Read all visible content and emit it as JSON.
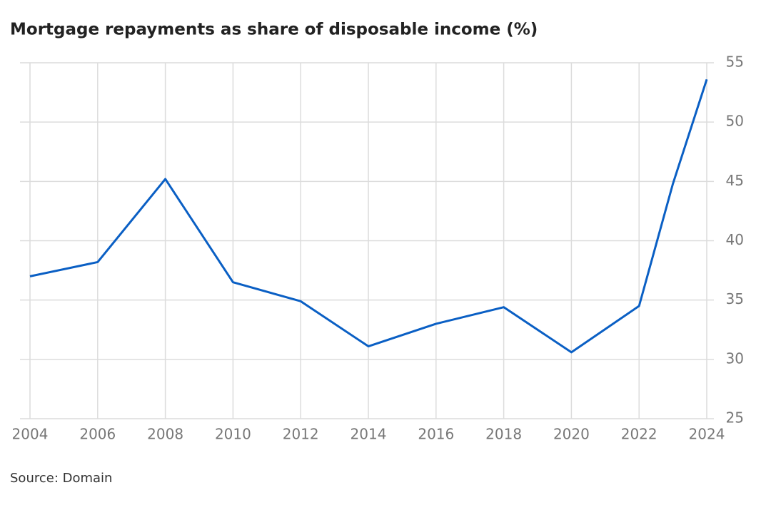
{
  "chart_data": {
    "type": "line",
    "title": "Mortgage repayments as share of disposable income (%)",
    "source": "Source: Domain",
    "x": [
      2004,
      2006,
      2008,
      2010,
      2012,
      2014,
      2016,
      2018,
      2020,
      2022,
      2023,
      2024
    ],
    "series": [
      {
        "color": "#0a5fc4",
        "values": [
          37.0,
          38.2,
          45.2,
          36.5,
          34.9,
          31.1,
          33.0,
          34.4,
          30.6,
          34.5,
          44.8,
          53.6
        ]
      }
    ],
    "xlim": [
      2004,
      2024
    ],
    "xticks": [
      2004,
      2006,
      2008,
      2010,
      2012,
      2014,
      2016,
      2018,
      2020,
      2022,
      2024
    ],
    "ylim": [
      25,
      55
    ],
    "yticks": [
      25,
      30,
      35,
      40,
      45,
      50,
      55
    ],
    "grid": true
  }
}
